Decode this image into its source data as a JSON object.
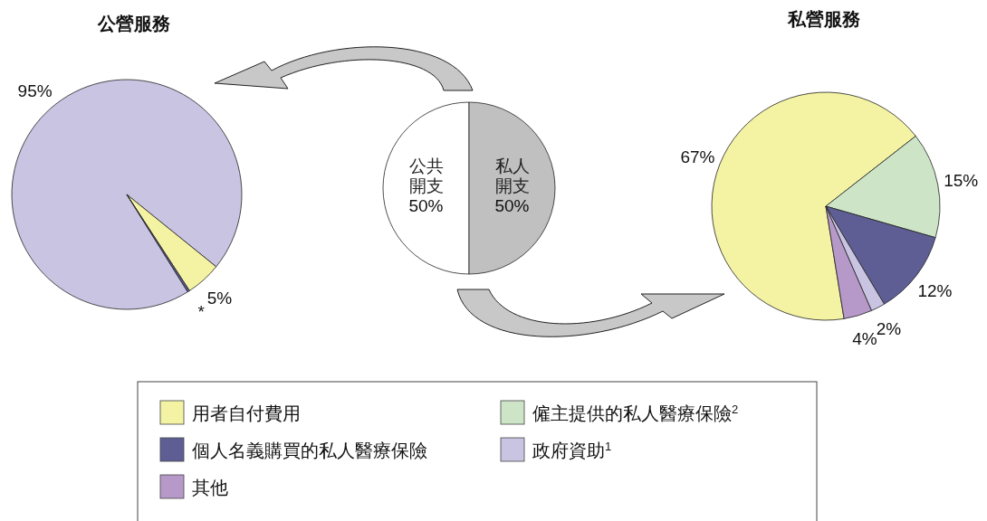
{
  "chart_data": [
    {
      "type": "pie",
      "title": "公營服務",
      "categories": [
        null,
        null,
        null
      ],
      "values": [
        95,
        5,
        0.3
      ],
      "value_labels": [
        "95%",
        "5%",
        "*"
      ],
      "colors": [
        "#c8c4e2",
        "#f4f3a4",
        "#5f5e94"
      ]
    },
    {
      "type": "pie",
      "categories": [
        "公共開支",
        "私人開支"
      ],
      "values": [
        50,
        50
      ],
      "value_labels": [
        "50%",
        "50%"
      ],
      "colors": [
        "#ffffff",
        "#c0c0c0"
      ]
    },
    {
      "type": "pie",
      "title": "私營服務",
      "legend": "bottom",
      "categories": [
        "用者自付費用",
        "僱主提供的私人醫療保險$^{2}$",
        "個人名義購買的私人醫療保險",
        "政府資助$^{1}$",
        "其他"
      ],
      "values": [
        67,
        15,
        12,
        2,
        4
      ],
      "value_labels": [
        "67%",
        "15%",
        "12%",
        "2%",
        "4%"
      ],
      "colors": [
        "#f4f3a4",
        "#cde5c6",
        "#5f5e94",
        "#c8c4e2",
        "#b699c9"
      ]
    }
  ]
}
